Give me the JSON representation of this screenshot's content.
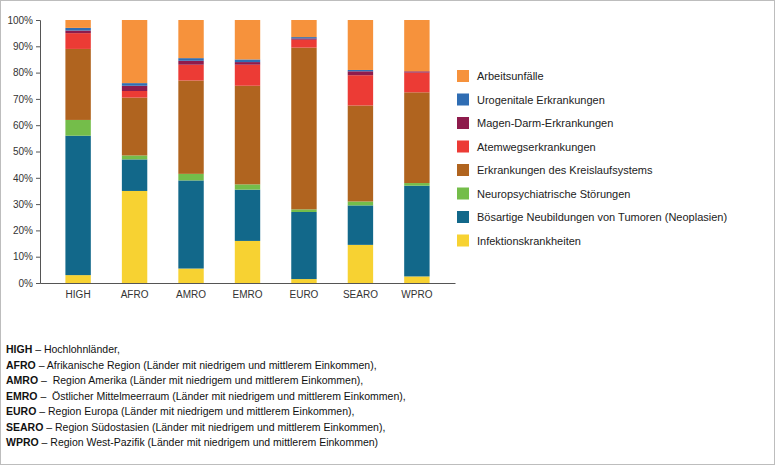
{
  "chart_data": {
    "type": "bar",
    "stacked": true,
    "legend": "right",
    "grid": false,
    "categories": [
      "HIGH",
      "AFRO",
      "AMRO",
      "EMRO",
      "EURO",
      "SEARO",
      "WPRO"
    ],
    "ylim": [
      0,
      100
    ],
    "yticks": [
      {
        "value": 0,
        "label": "0%"
      },
      {
        "value": 10,
        "label": "10%"
      },
      {
        "value": 20,
        "label": "20%"
      },
      {
        "value": 30,
        "label": "30%"
      },
      {
        "value": 40,
        "label": "40%"
      },
      {
        "value": 50,
        "label": "50%"
      },
      {
        "value": 60,
        "label": "60%"
      },
      {
        "value": 70,
        "label": "70%"
      },
      {
        "value": 80,
        "label": "80%"
      },
      {
        "value": 90,
        "label": "90%"
      },
      {
        "value": 100,
        "label": "100%"
      }
    ],
    "series": [
      {
        "name": "Infektionskrankheiten",
        "color": "#f7d232",
        "values": [
          3,
          35,
          5.5,
          16,
          1.5,
          14.5,
          2.5
        ]
      },
      {
        "name": "Bösartige Neubildungen von Tumoren (Neoplasien)",
        "color": "#12688a",
        "values": [
          53,
          12,
          33.5,
          19.5,
          25.5,
          15,
          34.5
        ]
      },
      {
        "name": "Neuropsychiatrische Störungen",
        "color": "#74bd4a",
        "values": [
          6,
          1.5,
          2.5,
          2,
          1,
          1.5,
          1
        ]
      },
      {
        "name": "Erkrankungen des Kreislaufsystems",
        "color": "#b0641f",
        "values": [
          27,
          22,
          35.5,
          37.5,
          61.5,
          36.5,
          34.5
        ]
      },
      {
        "name": "Atemwegserkrankungen",
        "color": "#ec3b35",
        "values": [
          6,
          2.5,
          6,
          8,
          3,
          11.5,
          7.5
        ]
      },
      {
        "name": "Magen-Darm-Erkrankungen",
        "color": "#8e1b4c",
        "values": [
          1,
          2,
          1.5,
          1,
          0.5,
          1.5,
          0.5
        ]
      },
      {
        "name": "Urogenitale Erkrankungen",
        "color": "#2f6db3",
        "values": [
          1,
          1,
          1,
          1,
          0.5,
          0.5,
          0
        ]
      },
      {
        "name": "Arbeitsunfälle",
        "color": "#f6923c",
        "values": [
          3,
          24,
          14.5,
          15,
          6.5,
          19,
          19.5
        ]
      }
    ],
    "annotations": [
      {
        "label": "HIGH",
        "text": " – Hochlohnländer,"
      },
      {
        "label": "AFRO",
        "text": " – Afrikanische Region (Länder mit niedrigem und mittlerem Einkommen),"
      },
      {
        "label": "AMRO",
        "text": " –  Region Amerika (Länder mit niedrigem und mittlerem Einkommen),"
      },
      {
        "label": "EMRO",
        "text": " –  Östlicher Mittelmeerraum (Länder mit niedrigem und mittlerem Einkommen),"
      },
      {
        "label": "EURO",
        "text": " – Region Europa (Länder mit niedrigem und mittlerem Einkommen),"
      },
      {
        "label": "SEARO",
        "text": " – Region Südostasien (Länder mit niedrigem und mittlerem Einkommen),"
      },
      {
        "label": "WPRO",
        "text": " – Region West-Pazifik (Länder mit niedrigem und mittlerem Einkommen)"
      }
    ]
  }
}
